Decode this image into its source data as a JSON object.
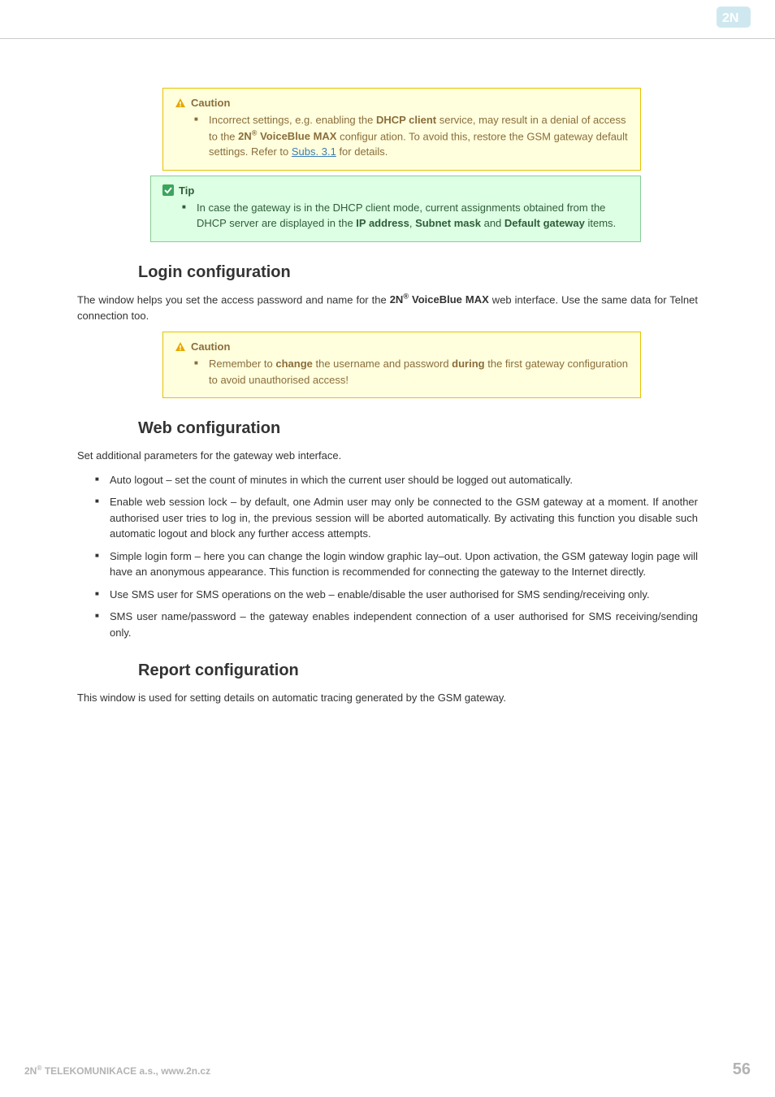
{
  "colors": {
    "caution_bg": "#ffffdd",
    "caution_border": "#e6c200",
    "caution_text": "#8a6d3b",
    "tip_bg": "#ddffe3",
    "tip_border": "#88cc99",
    "tip_text": "#2e5d3a",
    "link": "#3b7db5",
    "body_text": "#333333",
    "footer_text": "#b3b3b3",
    "logo_fill": "#cfe8f0"
  },
  "callout1": {
    "title": "Caution",
    "item_html": "Incorrect settings, e.g. enabling the <b>DHCP client</b> service, may result in a denial of access to the <b>2N<sup>®</sup> VoiceBlue MAX</b> configur ation. To avoid this, restore the GSM gateway default settings. Refer to <a class='link' href='#' data-name='subs-link' data-interactable='true'>Subs. 3.1</a> for details."
  },
  "callout2": {
    "title": "Tip",
    "item_html": "In case the gateway is in the DHCP client mode, current assignments obtained from the DHCP server are displayed in the <b>IP address</b>, <b>Subnet mask</b> and <b>Default gateway</b> items."
  },
  "section_login": {
    "heading": "Login configuration",
    "para_html": "The window helps you set the access password and name for the <b>2N<sup>®</sup> VoiceBlue MAX</b>  web interface. Use the same data for Telnet connection too."
  },
  "callout3": {
    "title": "Caution",
    "item_html": "Remember to <b>change</b> the username and password <b>during</b> the first gateway configuration to avoid unauthorised access!"
  },
  "section_web": {
    "heading": "Web configuration",
    "para": "Set additional parameters for the gateway web interface.",
    "items": [
      "Auto logout – set the count of minutes in which the current user should be logged out automatically.",
      "Enable web session lock – by default, one Admin user may only be connected to the GSM gateway at a moment. If another authorised user tries to log in, the previous session will be aborted automatically. By activating this function you disable such automatic logout and block any further access attempts.",
      "Simple login form – here you can change the login window graphic lay–out. Upon activation, the GSM gateway login page will have an anonymous appearance. This function is recommended for connecting the gateway to the Internet directly.",
      "Use SMS user for SMS operations on the web – enable/disable the user authorised for SMS sending/receiving only.",
      "SMS user name/password – the gateway enables independent connection of a user authorised for SMS receiving/sending only."
    ]
  },
  "section_report": {
    "heading": "Report configuration",
    "para": "This window is used for setting details on automatic tracing generated by the GSM gateway."
  },
  "footer": {
    "left_html": "2N<sup>®</sup> TELEKOMUNIKACE a.s., www.2n.cz",
    "page": "56"
  }
}
